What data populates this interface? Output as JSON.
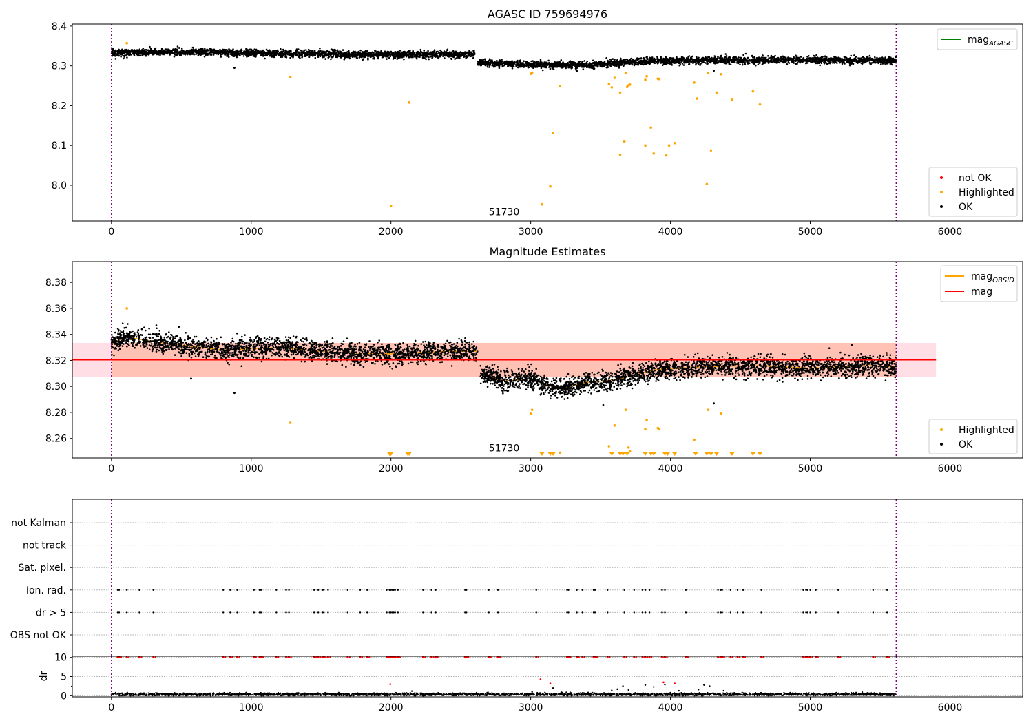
{
  "figure": {
    "background": "#ffffff"
  },
  "chart_data": [
    {
      "type": "scatter",
      "title": "AGASC ID 759694976",
      "xlim": [
        -280,
        6520
      ],
      "ylim": [
        7.91,
        8.405
      ],
      "xticks": [
        0,
        1000,
        2000,
        3000,
        4000,
        5000,
        6000
      ],
      "yticks": [
        8.0,
        8.1,
        8.2,
        8.3,
        8.4
      ],
      "ytick_labels": [
        "8.0",
        "8.1",
        "8.2",
        "8.3",
        "8.4"
      ],
      "vlines": [
        0,
        5615
      ],
      "vline_color": "#800080",
      "annotation": {
        "text": "51730",
        "x": 2700,
        "y": 7.925
      },
      "hline": {
        "name": "mag_AGASC",
        "value": null,
        "color": "#008000"
      },
      "legend_lines": [
        {
          "label": "mag",
          "sub": "AGASC",
          "color": "#008000"
        }
      ],
      "legend_markers": [
        {
          "label": "not OK",
          "color": "#ff0000"
        },
        {
          "label": "Highlighted",
          "color": "#ffa500"
        },
        {
          "label": "OK",
          "color": "#000000"
        }
      ],
      "ok_trend": {
        "segments": [
          {
            "x": [
              0,
              500,
              1000,
              1500,
              2000,
              2600
            ],
            "y": [
              8.333,
              8.335,
              8.332,
              8.33,
              8.328,
              8.329
            ]
          },
          {
            "x": [
              2620,
              3000,
              3400,
              3800,
              4200,
              4700,
              5200,
              5615
            ],
            "y": [
              8.308,
              8.303,
              8.302,
              8.311,
              8.314,
              8.314,
              8.315,
              8.313
            ]
          }
        ],
        "spread": 0.008
      },
      "highlighted": [
        {
          "x": 110,
          "y": 8.357
        },
        {
          "x": 1280,
          "y": 8.272
        },
        {
          "x": 2000,
          "y": 7.948
        },
        {
          "x": 2130,
          "y": 8.208
        },
        {
          "x": 3000,
          "y": 8.28
        },
        {
          "x": 3010,
          "y": 8.283
        },
        {
          "x": 3080,
          "y": 7.952
        },
        {
          "x": 3140,
          "y": 7.997
        },
        {
          "x": 3160,
          "y": 8.131
        },
        {
          "x": 3210,
          "y": 8.249
        },
        {
          "x": 3560,
          "y": 8.254
        },
        {
          "x": 3580,
          "y": 8.246
        },
        {
          "x": 3600,
          "y": 8.27
        },
        {
          "x": 3640,
          "y": 8.077
        },
        {
          "x": 3640,
          "y": 8.233
        },
        {
          "x": 3670,
          "y": 8.11
        },
        {
          "x": 3680,
          "y": 8.282
        },
        {
          "x": 3690,
          "y": 8.247
        },
        {
          "x": 3700,
          "y": 8.251
        },
        {
          "x": 3710,
          "y": 8.253
        },
        {
          "x": 3820,
          "y": 8.1
        },
        {
          "x": 3820,
          "y": 8.265
        },
        {
          "x": 3830,
          "y": 8.274
        },
        {
          "x": 3860,
          "y": 8.145
        },
        {
          "x": 3880,
          "y": 8.08
        },
        {
          "x": 3910,
          "y": 8.268
        },
        {
          "x": 3920,
          "y": 8.267
        },
        {
          "x": 3970,
          "y": 8.075
        },
        {
          "x": 3990,
          "y": 8.1
        },
        {
          "x": 4030,
          "y": 8.106
        },
        {
          "x": 4170,
          "y": 8.258
        },
        {
          "x": 4190,
          "y": 8.218
        },
        {
          "x": 4260,
          "y": 8.003
        },
        {
          "x": 4270,
          "y": 8.282
        },
        {
          "x": 4290,
          "y": 8.086
        },
        {
          "x": 4330,
          "y": 8.233
        },
        {
          "x": 4360,
          "y": 8.279
        },
        {
          "x": 4440,
          "y": 8.215
        },
        {
          "x": 4590,
          "y": 8.236
        },
        {
          "x": 4640,
          "y": 8.203
        }
      ],
      "ok_outliers": [
        {
          "x": 880,
          "y": 8.295
        },
        {
          "x": 4310,
          "y": 8.288
        }
      ]
    },
    {
      "type": "scatter",
      "title": "Magnitude Estimates",
      "xlim": [
        -280,
        6520
      ],
      "ylim": [
        8.245,
        8.396
      ],
      "xticks": [
        0,
        1000,
        2000,
        3000,
        4000,
        5000,
        6000
      ],
      "yticks": [
        8.26,
        8.28,
        8.3,
        8.32,
        8.34,
        8.36,
        8.38
      ],
      "ytick_labels": [
        "8.26",
        "8.28",
        "8.30",
        "8.32",
        "8.34",
        "8.36",
        "8.38"
      ],
      "vlines": [
        0,
        5615
      ],
      "vline_color": "#800080",
      "annotation": {
        "text": "51730",
        "x": 2700,
        "y": 8.25
      },
      "mag_line": {
        "value": 8.3205,
        "color": "#ff0000",
        "x0": -280,
        "x1": 5900
      },
      "mag_band": {
        "low": 8.3075,
        "high": 8.3335,
        "x0": -280,
        "x1": 5900,
        "color": "#ffc0cb"
      },
      "obsid_band": {
        "low": 8.3075,
        "high": 8.3335,
        "x0": 0,
        "x1": 5615,
        "color": "#ffa07a"
      },
      "legend_lines": [
        {
          "label": "mag",
          "sub": "OBSID",
          "color": "#ffa500"
        },
        {
          "label": "mag",
          "sub": "",
          "color": "#ff0000"
        }
      ],
      "legend_markers": [
        {
          "label": "Highlighted",
          "color": "#ffa500"
        },
        {
          "label": "OK",
          "color": "#000000"
        }
      ],
      "ok_trend": {
        "segments": [
          {
            "x": [
              0,
              100,
              400,
              800,
              1200,
              1600,
              2000,
              2400,
              2620
            ],
            "y": [
              8.333,
              8.338,
              8.333,
              8.328,
              8.33,
              8.326,
              8.325,
              8.327,
              8.327
            ]
          },
          {
            "x": [
              2640,
              2800,
              3000,
              3200,
              3400,
              3600,
              3900,
              4200,
              4600,
              5000,
              5400,
              5615
            ],
            "y": [
              8.31,
              8.304,
              8.306,
              8.298,
              8.303,
              8.305,
              8.313,
              8.315,
              8.316,
              8.314,
              8.316,
              8.315
            ]
          }
        ],
        "spread": 0.007
      },
      "highlighted": [
        {
          "x": 110,
          "y": 8.36
        },
        {
          "x": 1280,
          "y": 8.272
        },
        {
          "x": 3000,
          "y": 8.279
        },
        {
          "x": 3010,
          "y": 8.282
        },
        {
          "x": 3210,
          "y": 8.249
        },
        {
          "x": 3560,
          "y": 8.254
        },
        {
          "x": 3600,
          "y": 8.27
        },
        {
          "x": 3680,
          "y": 8.282
        },
        {
          "x": 3700,
          "y": 8.253
        },
        {
          "x": 3710,
          "y": 8.25
        },
        {
          "x": 3820,
          "y": 8.267
        },
        {
          "x": 3830,
          "y": 8.274
        },
        {
          "x": 3910,
          "y": 8.268
        },
        {
          "x": 3920,
          "y": 8.267
        },
        {
          "x": 4170,
          "y": 8.259
        },
        {
          "x": 4270,
          "y": 8.282
        },
        {
          "x": 4360,
          "y": 8.279
        }
      ],
      "below_range": [
        1990,
        2000,
        2120,
        2130,
        3080,
        3140,
        3160,
        3580,
        3640,
        3660,
        3690,
        3820,
        3860,
        3880,
        3960,
        3980,
        4030,
        4180,
        4260,
        4290,
        4330,
        4440,
        4590,
        4640
      ],
      "ok_outliers": [
        {
          "x": 880,
          "y": 8.295
        },
        {
          "x": 4310,
          "y": 8.287
        },
        {
          "x": 570,
          "y": 8.306
        }
      ]
    },
    {
      "type": "scatter",
      "title": "",
      "xlim": [
        -280,
        6520
      ],
      "categories": [
        "not Kalman",
        "not track",
        "Sat. pixel.",
        "Ion. rad.",
        "dr > 5",
        "OBS not OK"
      ],
      "vlines": [
        0,
        5615
      ],
      "vline_color": "#800080",
      "flag_times": [
        45,
        55,
        110,
        200,
        300,
        800,
        850,
        900,
        1020,
        1060,
        1070,
        1180,
        1250,
        1270,
        1450,
        1480,
        1510,
        1520,
        1550,
        1690,
        1780,
        1830,
        1970,
        1990,
        2000,
        2010,
        2020,
        2030,
        2050,
        2230,
        2290,
        2320,
        2530,
        2540,
        2700,
        2760,
        2770,
        3040,
        3260,
        3270,
        3330,
        3370,
        3450,
        3460,
        3550,
        3670,
        3740,
        3800,
        3820,
        3850,
        3940,
        3960,
        4110,
        4340,
        4360,
        4370,
        4430,
        4480,
        4520,
        4650,
        4950,
        4970,
        4980,
        5000,
        5040,
        5200,
        5450,
        5550
      ]
    },
    {
      "type": "scatter",
      "title": "",
      "xlim": [
        -280,
        6520
      ],
      "ylim": [
        -0.3,
        10.3
      ],
      "xticks": [
        0,
        1000,
        2000,
        3000,
        4000,
        5000,
        6000
      ],
      "yticks": [
        0,
        5,
        10
      ],
      "ytick_labels": [
        "0",
        "5",
        "10"
      ],
      "ylabel": "dr",
      "vlines": [
        0,
        5615
      ],
      "vline_color": "#800080",
      "capped_value": 10,
      "baseline": {
        "x0": 0,
        "x1": 5615,
        "mean": 0.35,
        "spread": 0.3
      },
      "red_points": [
        {
          "x": 1995,
          "y": 3.0
        },
        {
          "x": 3070,
          "y": 4.3
        },
        {
          "x": 3140,
          "y": 3.2
        },
        {
          "x": 3950,
          "y": 3.5
        },
        {
          "x": 4030,
          "y": 3.2
        }
      ],
      "black_points": [
        {
          "x": 3160,
          "y": 2.0
        },
        {
          "x": 3620,
          "y": 1.7
        },
        {
          "x": 3660,
          "y": 2.5
        },
        {
          "x": 3820,
          "y": 2.8
        },
        {
          "x": 3880,
          "y": 2.3
        },
        {
          "x": 3960,
          "y": 2.9
        },
        {
          "x": 4200,
          "y": 1.6
        },
        {
          "x": 4240,
          "y": 2.8
        },
        {
          "x": 4280,
          "y": 2.5
        },
        {
          "x": 2150,
          "y": 1.2
        },
        {
          "x": 3010,
          "y": 1.0
        },
        {
          "x": 3580,
          "y": 1.4
        },
        {
          "x": 3700,
          "y": 1.5
        },
        {
          "x": 4060,
          "y": 1.3
        },
        {
          "x": 4380,
          "y": 1.3
        }
      ]
    }
  ]
}
